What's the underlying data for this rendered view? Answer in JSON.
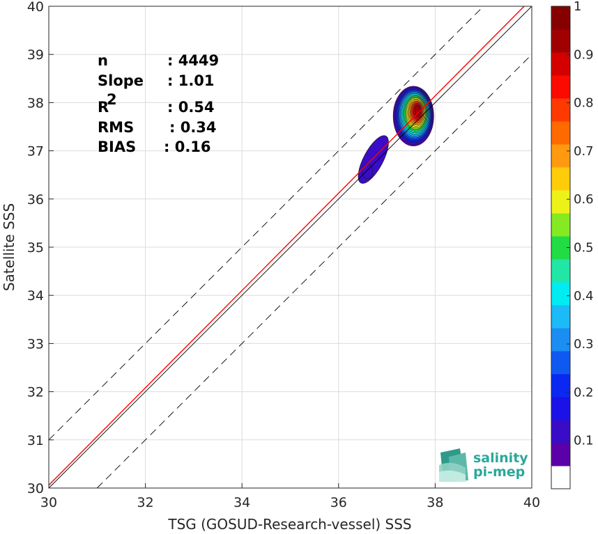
{
  "chart_data": {
    "type": "scatter",
    "subtype": "density-contour",
    "title": "",
    "xlabel": "TSG (GOSUD-Research-vessel) SSS",
    "ylabel": "Satellite SSS",
    "xlim": [
      30,
      40
    ],
    "ylim": [
      30,
      40
    ],
    "xticks": [
      "30",
      "32",
      "34",
      "36",
      "38",
      "40"
    ],
    "yticks": [
      "30",
      "31",
      "32",
      "33",
      "34",
      "35",
      "36",
      "37",
      "38",
      "39",
      "40"
    ],
    "grid": true,
    "reference_lines": [
      {
        "name": "one-to-one",
        "style": "solid",
        "color": "#000000",
        "slope": 1,
        "intercept": 0
      },
      {
        "name": "upper",
        "style": "dashed",
        "color": "#000000",
        "slope": 1,
        "intercept": 1
      },
      {
        "name": "lower",
        "style": "dashed",
        "color": "#000000",
        "slope": 1,
        "intercept": -1
      },
      {
        "name": "fit",
        "style": "solid",
        "color": "#ff0000",
        "slope": 1.01,
        "intercept": -0.24
      }
    ],
    "stats": [
      {
        "label": "n",
        "sup": "",
        "value": ": 4449"
      },
      {
        "label": "Slope",
        "sup": "",
        "value": ": 1.01"
      },
      {
        "label": "R",
        "sup": "2",
        "value": ": 0.54"
      },
      {
        "label": "RMS",
        "sup": "",
        "value": ": 0.34"
      },
      {
        "label": "BIAS",
        "sup": "",
        "value": ": 0.16"
      }
    ],
    "density_clusters": [
      {
        "x": 37.55,
        "y": 37.72,
        "peak": 1.0
      },
      {
        "x": 36.72,
        "y": 36.82,
        "peak": 0.1
      }
    ],
    "colorbar": {
      "ticks": [
        "0.1",
        "0.2",
        "0.3",
        "0.4",
        "0.5",
        "0.6",
        "0.7",
        "0.8",
        "0.9",
        "1"
      ],
      "colors": [
        "#ffffff",
        "#5b00a8",
        "#3a0cc8",
        "#1a12e6",
        "#0a28f2",
        "#0f59f0",
        "#1a8ef2",
        "#1cbaf6",
        "#00ecf2",
        "#22e6a6",
        "#22dc45",
        "#86ea22",
        "#ecf218",
        "#ffcc0a",
        "#ff9a10",
        "#ff6a00",
        "#ff3a00",
        "#fa0a00",
        "#d40000",
        "#a00000",
        "#860000"
      ]
    }
  },
  "logo": {
    "line1": "salinity",
    "line2": "pi-mep"
  }
}
